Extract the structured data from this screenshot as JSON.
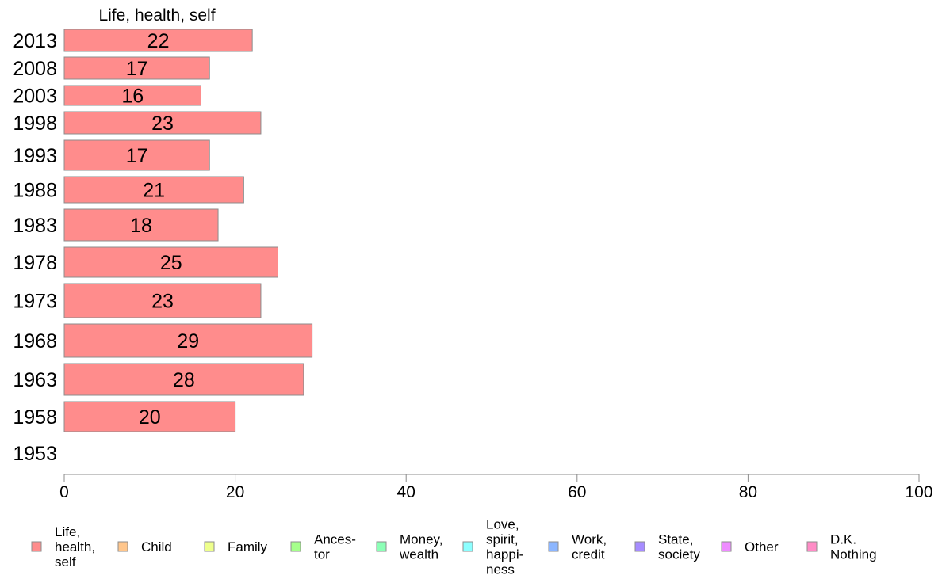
{
  "chart_data": {
    "type": "bar",
    "orientation": "horizontal",
    "series_title": "Life, health, self",
    "categories": [
      "2013",
      "2008",
      "2003",
      "1998",
      "1993",
      "1988",
      "1983",
      "1978",
      "1973",
      "1968",
      "1963",
      "1958",
      "1953"
    ],
    "series": [
      {
        "name": "Life, health, self",
        "values": [
          22,
          17,
          16,
          23,
          17,
          21,
          18,
          25,
          23,
          29,
          28,
          20,
          null
        ]
      }
    ],
    "data_labels": [
      "22",
      "17",
      "16",
      "23",
      "17",
      "21",
      "18",
      "25",
      "23",
      "29",
      "28",
      "20",
      ""
    ],
    "xlim": [
      0,
      100
    ],
    "xticks": [
      "0",
      "20",
      "40",
      "60",
      "80",
      "100"
    ],
    "grid": false,
    "legend_position": "bottom",
    "legend": [
      {
        "label": [
          "Life,",
          "health,",
          "self"
        ],
        "color": "#ff8c8c"
      },
      {
        "label": [
          "Child"
        ],
        "color": "#ffc68c"
      },
      {
        "label": [
          "Family"
        ],
        "color": "#eeff8c"
      },
      {
        "label": [
          "Ances-",
          "tor"
        ],
        "color": "#a6ff8c"
      },
      {
        "label": [
          "Money,",
          "wealth"
        ],
        "color": "#8cffb6"
      },
      {
        "label": [
          "Love,",
          "spirit,",
          "happi-",
          "ness"
        ],
        "color": "#8cffff"
      },
      {
        "label": [
          "Work,",
          "credit"
        ],
        "color": "#8cb6ff"
      },
      {
        "label": [
          "State,",
          "society"
        ],
        "color": "#a68cff"
      },
      {
        "label": [
          "Other"
        ],
        "color": "#ee8cff"
      },
      {
        "label": [
          "D.K.",
          "Nothing"
        ],
        "color": "#ff8cc6"
      }
    ],
    "colors": {
      "bar": "#ff8c8c",
      "bar_stroke": "#8c8c8c",
      "axis": "#8c8c8c"
    }
  }
}
